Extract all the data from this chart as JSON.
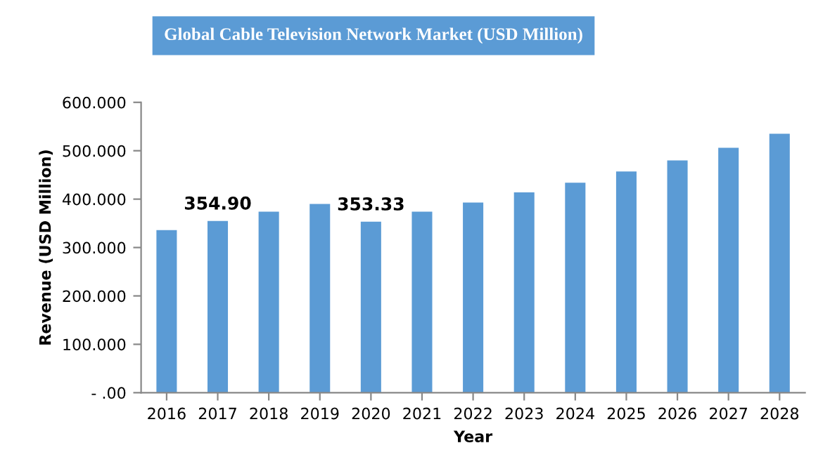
{
  "chart_data": {
    "type": "bar",
    "title": "Global Cable Television Network Market (USD Million)",
    "xlabel": "Year",
    "ylabel": "Revenue (USD Million)",
    "categories": [
      "2016",
      "2017",
      "2018",
      "2019",
      "2020",
      "2021",
      "2022",
      "2023",
      "2024",
      "2025",
      "2026",
      "2027",
      "2028"
    ],
    "values": [
      336,
      354.9,
      374,
      390,
      353.33,
      374,
      393,
      414,
      434,
      457,
      480,
      506,
      535
    ],
    "value_labels": [
      null,
      "354.90",
      null,
      null,
      "353.33",
      null,
      null,
      null,
      null,
      null,
      null,
      null,
      null
    ],
    "color": "#5b9bd5",
    "ylim": [
      0,
      600
    ],
    "yticks": [
      {
        "value": 0,
        "label": "- .00"
      },
      {
        "value": 100,
        "label": "100.000"
      },
      {
        "value": 200,
        "label": "200.000"
      },
      {
        "value": 300,
        "label": "300.000"
      },
      {
        "value": 400,
        "label": "400.000"
      },
      {
        "value": 500,
        "label": "500.000"
      },
      {
        "value": 600,
        "label": "600.000"
      }
    ],
    "grid": false,
    "legend": false
  }
}
